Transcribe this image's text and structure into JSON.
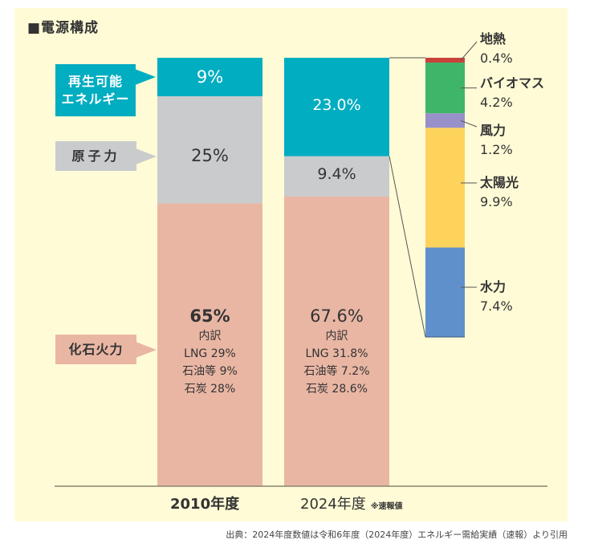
{
  "title": "■電源構成",
  "source": "出典：2024年度数値は令和6年度（2024年度）エネルギー需給実績（速報）より引用",
  "colors": {
    "background": "#fffbd6",
    "renewable": "#00adc1",
    "nuclear": "#c9cbcd",
    "fossil": "#e9b6a4",
    "geothermal": "#c9423a",
    "biomass": "#3fb56a",
    "wind": "#9890c8",
    "solar": "#fdd35c",
    "hydro": "#6090cc"
  },
  "callouts": {
    "renewable": "再生可能エネルギー",
    "renewable_line1": "再生可能",
    "renewable_line2": "エネルギー",
    "nuclear": "原子力",
    "fossil": "化石火力"
  },
  "chart_data": {
    "type": "bar",
    "stacked": true,
    "title": "■電源構成",
    "categories": [
      "2010年度",
      "2024年度"
    ],
    "category_notes": [
      "",
      "※速報値"
    ],
    "ylim": [
      0,
      100
    ],
    "series": [
      {
        "name": "化石火力",
        "values": [
          65,
          67.6
        ],
        "labels": [
          "65%",
          "67.6%"
        ]
      },
      {
        "name": "原子力",
        "values": [
          25,
          9.4
        ],
        "labels": [
          "25%",
          "9.4%"
        ]
      },
      {
        "name": "再生可能エネルギー",
        "values": [
          9,
          23.0
        ],
        "labels": [
          "9%",
          "23.0%"
        ]
      }
    ],
    "fossil_breakdown": {
      "heading": "内訳",
      "2010": [
        "LNG 29%",
        "石油等 9%",
        "石炭 28%"
      ],
      "2024": [
        "LNG 31.8%",
        "石油等 7.2%",
        "石炭 28.6%"
      ]
    },
    "renewable_breakdown_2024": [
      {
        "name": "地熱",
        "value": 0.4,
        "label": "0.4%"
      },
      {
        "name": "バイオマス",
        "value": 4.2,
        "label": "4.2%"
      },
      {
        "name": "風力",
        "value": 1.2,
        "label": "1.2%"
      },
      {
        "name": "太陽光",
        "value": 9.9,
        "label": "9.9%"
      },
      {
        "name": "水力",
        "value": 7.4,
        "label": "7.4%"
      }
    ]
  }
}
